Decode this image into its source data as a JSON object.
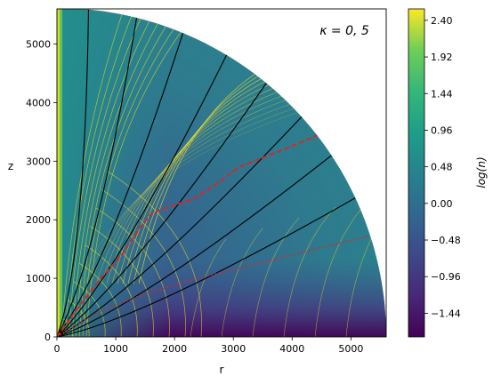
{
  "chart_data": {
    "type": "heatmap",
    "annotation": "κ = 0, 5",
    "xlabel": "r",
    "ylabel": "z",
    "xlim": [
      0,
      5600
    ],
    "ylim": [
      0,
      5600
    ],
    "x_ticks": [
      "0",
      "1000",
      "2000",
      "3000",
      "4000",
      "5000"
    ],
    "y_ticks": [
      "0",
      "1000",
      "2000",
      "3000",
      "4000",
      "5000"
    ],
    "colorbar": {
      "label": "log(n)",
      "range": [
        -1.75,
        2.55
      ],
      "ticks": [
        "−1.44",
        "−0.96",
        "−0.48",
        "0.00",
        "0.48",
        "0.96",
        "1.44",
        "1.92",
        "2.40"
      ],
      "tick_values": [
        -1.44,
        -0.96,
        -0.48,
        0.0,
        0.48,
        0.96,
        1.44,
        1.92,
        2.4
      ],
      "colormap": "viridis"
    },
    "domain_radius": 5600,
    "field_line_angles_deg": [
      84.5,
      76,
      67.5,
      59,
      50.5,
      42,
      33.5,
      25
    ],
    "red_dashed_line": {
      "style": "dashed",
      "color": "#d62728",
      "points": [
        [
          0,
          0
        ],
        [
          300,
          420
        ],
        [
          700,
          950
        ],
        [
          1100,
          1400
        ],
        [
          1400,
          1850
        ],
        [
          1600,
          2100
        ],
        [
          1850,
          2200
        ],
        [
          2300,
          2350
        ],
        [
          2700,
          2600
        ],
        [
          3100,
          2900
        ],
        [
          3600,
          3100
        ],
        [
          4100,
          3300
        ],
        [
          4600,
          3520
        ]
      ]
    },
    "red_dotted_line": {
      "style": "dotted",
      "color": "#d62728",
      "points": [
        [
          0,
          0
        ],
        [
          700,
          420
        ],
        [
          1400,
          700
        ],
        [
          2200,
          950
        ],
        [
          3000,
          1150
        ],
        [
          3800,
          1350
        ],
        [
          4500,
          1530
        ],
        [
          5300,
          1720
        ]
      ]
    }
  }
}
